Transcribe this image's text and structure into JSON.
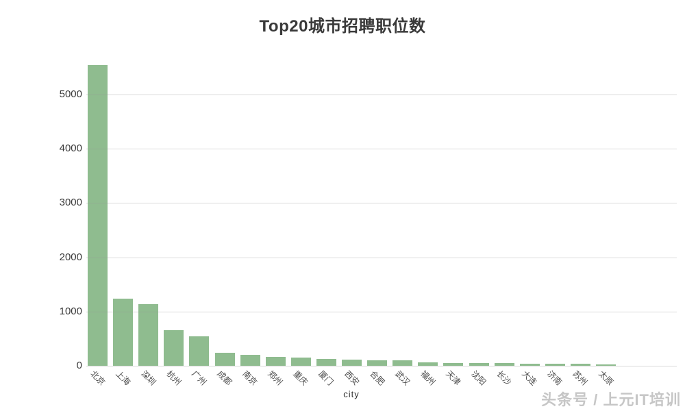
{
  "page": {
    "background": "#ffffff"
  },
  "chart_data": {
    "type": "bar",
    "title": "Top20城市招聘职位数",
    "xlabel": "city",
    "ylabel": "",
    "categories": [
      "北京",
      "上海",
      "深圳",
      "杭州",
      "广州",
      "成都",
      "南京",
      "郑州",
      "重庆",
      "厦门",
      "西安",
      "合肥",
      "武汉",
      "福州",
      "天津",
      "沈阳",
      "长沙",
      "大连",
      "济南",
      "苏州",
      "太原"
    ],
    "values": [
      5540,
      1235,
      1140,
      652,
      540,
      245,
      205,
      170,
      148,
      132,
      115,
      100,
      95,
      60,
      56,
      54,
      48,
      44,
      42,
      40,
      28
    ],
    "yticks": [
      0,
      1000,
      2000,
      3000,
      4000,
      5000
    ],
    "ylim": [
      0,
      5600
    ],
    "bar_color": "#8fbc8f",
    "gridline_color": "#d9d9d9",
    "grid": true,
    "legend": false,
    "tick_rotation": 45
  },
  "watermark": {
    "text": "头条号 / 上元IT培训"
  }
}
